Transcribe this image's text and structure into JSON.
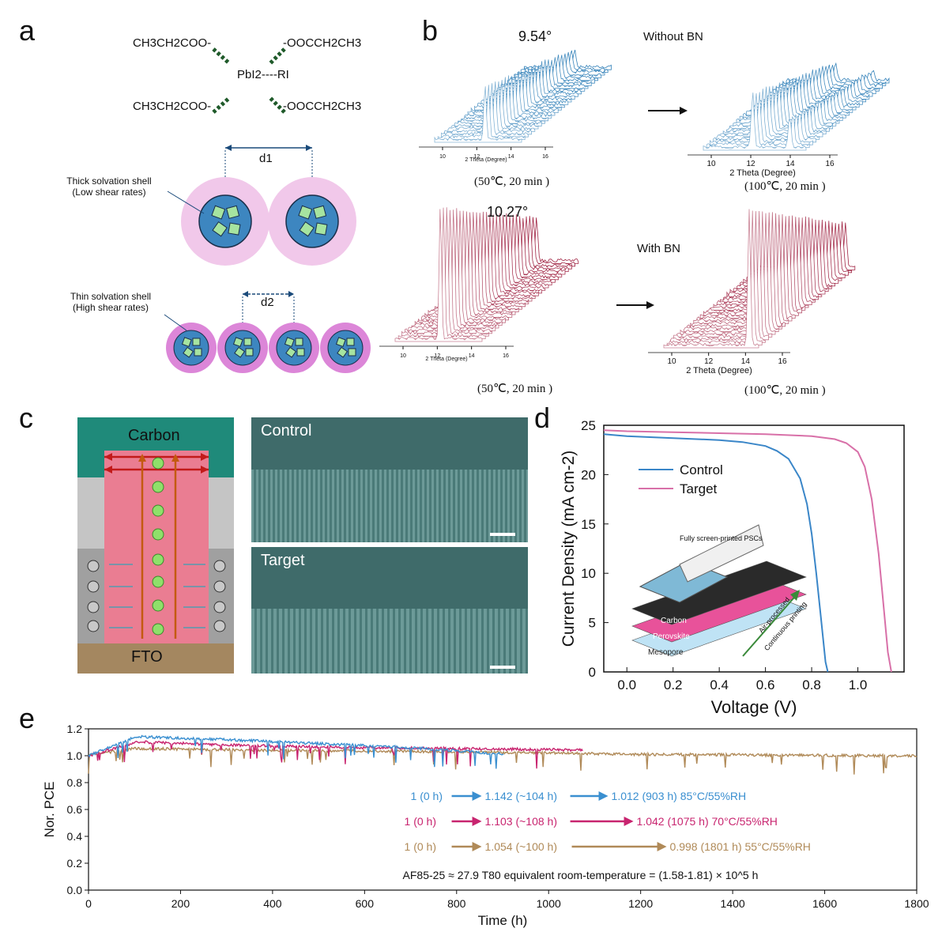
{
  "panels": {
    "a": "a",
    "b": "b",
    "c": "c",
    "d": "d",
    "e": "e"
  },
  "panel_a": {
    "ligand_tl": "CH3CH2COO-",
    "ligand_bl": "CH3CH2COO-",
    "ligand_tr": "-OOCCH2CH3",
    "ligand_br": "-OOCCH2CH3",
    "center": "PbI2----RI",
    "d1": "d1",
    "d2": "d2",
    "thick_label_1": "Thick solvation shell",
    "thick_label_2": "(Low shear rates)",
    "thin_label_1": "Thin solvation shell",
    "thin_label_2": "(High shear rates)"
  },
  "panel_b": {
    "peak_top": "9.54°",
    "peak_bottom": "10.27°",
    "without_bn": "Without BN",
    "with_bn": "With BN",
    "axis_title": "2 Theta (Degree)",
    "ticks": [
      "10",
      "12",
      "14",
      "16"
    ],
    "cond_50": "(50℃, 20 min )",
    "cond_100": "(100℃, 20 min )",
    "colors": {
      "blue": "#2f7fb8",
      "red": "#9e1f3f"
    }
  },
  "panel_c": {
    "carbon": "Carbon",
    "fto": "FTO",
    "control": "Control",
    "target": "Target"
  },
  "chart_data": [
    {
      "type": "line",
      "panel": "d",
      "xlabel": "Voltage (V)",
      "ylabel": "Current Density (mA cm-2)",
      "xlim": [
        -0.1,
        1.2
      ],
      "ylim": [
        0,
        25
      ],
      "xticks": [
        "0.0",
        "0.2",
        "0.4",
        "0.6",
        "0.8",
        "1.0"
      ],
      "yticks": [
        "0",
        "5",
        "10",
        "15",
        "20",
        "25"
      ],
      "legend_position": "top-left",
      "series": [
        {
          "name": "Control",
          "color": "#3a86c8",
          "x": [
            -0.1,
            0.0,
            0.2,
            0.4,
            0.5,
            0.6,
            0.65,
            0.7,
            0.75,
            0.78,
            0.8,
            0.82,
            0.84,
            0.86,
            0.87
          ],
          "y": [
            24.1,
            23.9,
            23.7,
            23.5,
            23.3,
            22.9,
            22.4,
            21.6,
            19.6,
            17.0,
            14.0,
            10.0,
            5.5,
            1.0,
            0.0
          ]
        },
        {
          "name": "Target",
          "color": "#d870a8",
          "x": [
            -0.1,
            0.0,
            0.2,
            0.4,
            0.6,
            0.8,
            0.9,
            0.95,
            1.0,
            1.03,
            1.06,
            1.09,
            1.11,
            1.13,
            1.145
          ],
          "y": [
            24.5,
            24.4,
            24.3,
            24.2,
            24.1,
            23.9,
            23.6,
            23.2,
            22.3,
            20.8,
            17.5,
            12.0,
            7.0,
            2.0,
            0.0
          ]
        }
      ],
      "inset": {
        "title": "Fully screen-printed PSCs",
        "layers": [
          "Carbon",
          "Perovskite",
          "Mesopore"
        ],
        "arrow_1": "Air-processed",
        "arrow_2": "Continuous printing"
      }
    },
    {
      "type": "line",
      "panel": "e",
      "xlabel": "Time (h)",
      "ylabel": "Nor. PCE",
      "xlim": [
        0,
        1800
      ],
      "ylim": [
        0.0,
        1.2
      ],
      "xticks": [
        "0",
        "200",
        "400",
        "600",
        "800",
        "1000",
        "1200",
        "1400",
        "1600",
        "1800"
      ],
      "yticks": [
        "0.0",
        "0.2",
        "0.4",
        "0.6",
        "0.8",
        "1.0",
        "1.2"
      ],
      "series": [
        {
          "name": "85°C/55%RH",
          "color": "#3a8fd0",
          "x_end": 903,
          "x": [
            0,
            104,
            300,
            500,
            700,
            903
          ],
          "y": [
            1.0,
            1.142,
            1.12,
            1.09,
            1.06,
            1.012
          ]
        },
        {
          "name": "70°C/55%RH",
          "color": "#c8246f",
          "x_end": 1075,
          "x": [
            0,
            108,
            300,
            600,
            900,
            1075
          ],
          "y": [
            1.0,
            1.103,
            1.08,
            1.06,
            1.05,
            1.042
          ]
        },
        {
          "name": "55°C/55%RH",
          "color": "#b08a58",
          "x_end": 1801,
          "x": [
            0,
            100,
            400,
            800,
            1200,
            1500,
            1801
          ],
          "y": [
            1.0,
            1.054,
            1.04,
            1.03,
            1.01,
            1.005,
            0.998
          ]
        }
      ],
      "annotations": [
        {
          "a": "1 (0 h)",
          "b": "1.142 (~104 h)",
          "c": "1.012 (903 h) 85°C/55%RH",
          "color": "#3a8fd0"
        },
        {
          "a": "1 (0 h)",
          "b": "1.103 (~108 h)",
          "c": "1.042 (1075 h) 70°C/55%RH",
          "color": "#c8246f"
        },
        {
          "a": "1 (0 h)",
          "b": "1.054 (~100 h)",
          "c": "0.998 (1801 h) 55°C/55%RH",
          "color": "#b08a58"
        }
      ],
      "af_note": "AF85-25 ≈ 27.9  T80 equivalent room-temperature = (1.58-1.81) × 10^5 h"
    }
  ]
}
